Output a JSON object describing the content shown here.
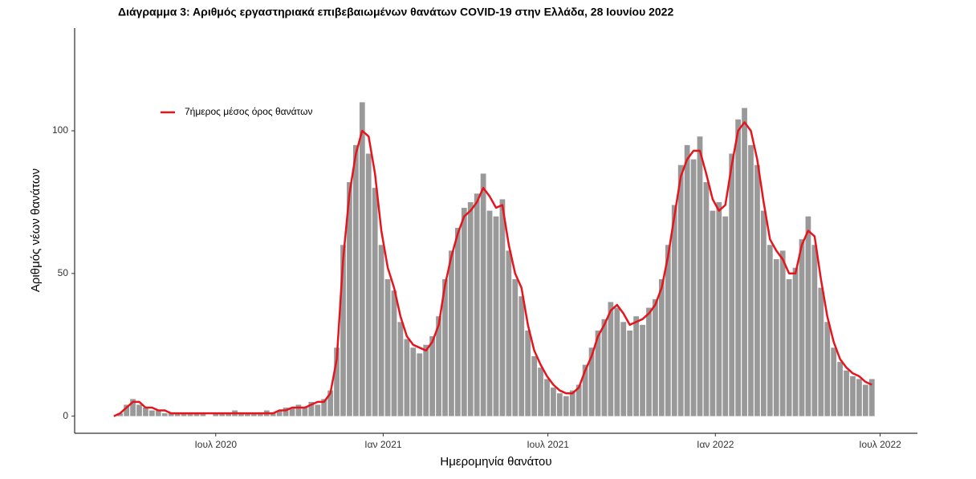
{
  "chart_data": {
    "type": "bar",
    "title": "Διάγραμμα 3: Αριθμός εργαστηριακά επιβεβαιωμένων θανάτων COVID-19 στην Ελλάδα, 28 Ιουνίου 2022",
    "x_label": "Ημερομηνία θανάτου",
    "y_label": "Αριθμός νέων θανάτων",
    "x": [
      "2020-03-11",
      "2020-03-18",
      "2020-03-25",
      "2020-04-01",
      "2020-04-08",
      "2020-04-15",
      "2020-04-22",
      "2020-04-29",
      "2020-05-06",
      "2020-05-13",
      "2020-05-20",
      "2020-05-27",
      "2020-06-03",
      "2020-06-10",
      "2020-06-17",
      "2020-06-24",
      "2020-07-01",
      "2020-07-08",
      "2020-07-15",
      "2020-07-22",
      "2020-07-29",
      "2020-08-05",
      "2020-08-12",
      "2020-08-19",
      "2020-08-26",
      "2020-09-02",
      "2020-09-09",
      "2020-09-16",
      "2020-09-23",
      "2020-09-30",
      "2020-10-07",
      "2020-10-14",
      "2020-10-21",
      "2020-10-28",
      "2020-11-04",
      "2020-11-11",
      "2020-11-18",
      "2020-11-25",
      "2020-12-02",
      "2020-12-09",
      "2020-12-16",
      "2020-12-23",
      "2020-12-30",
      "2021-01-06",
      "2021-01-13",
      "2021-01-20",
      "2021-01-27",
      "2021-02-03",
      "2021-02-10",
      "2021-02-17",
      "2021-02-24",
      "2021-03-03",
      "2021-03-10",
      "2021-03-17",
      "2021-03-24",
      "2021-03-31",
      "2021-04-07",
      "2021-04-14",
      "2021-04-21",
      "2021-04-28",
      "2021-05-05",
      "2021-05-12",
      "2021-05-19",
      "2021-05-26",
      "2021-06-02",
      "2021-06-09",
      "2021-06-16",
      "2021-06-23",
      "2021-06-30",
      "2021-07-07",
      "2021-07-14",
      "2021-07-21",
      "2021-07-28",
      "2021-08-04",
      "2021-08-11",
      "2021-08-18",
      "2021-08-25",
      "2021-09-01",
      "2021-09-08",
      "2021-09-15",
      "2021-09-22",
      "2021-09-29",
      "2021-10-06",
      "2021-10-13",
      "2021-10-20",
      "2021-10-27",
      "2021-11-03",
      "2021-11-10",
      "2021-11-17",
      "2021-11-24",
      "2021-12-01",
      "2021-12-08",
      "2021-12-15",
      "2021-12-22",
      "2021-12-29",
      "2022-01-05",
      "2022-01-12",
      "2022-01-19",
      "2022-01-26",
      "2022-02-02",
      "2022-02-09",
      "2022-02-16",
      "2022-02-23",
      "2022-03-02",
      "2022-03-09",
      "2022-03-16",
      "2022-03-23",
      "2022-03-30",
      "2022-04-06",
      "2022-04-13",
      "2022-04-20",
      "2022-04-27",
      "2022-05-04",
      "2022-05-11",
      "2022-05-18",
      "2022-05-25",
      "2022-06-01",
      "2022-06-08",
      "2022-06-15",
      "2022-06-22"
    ],
    "series": [
      {
        "color": "#999999",
        "values": [
          0,
          1,
          4,
          6,
          4,
          3,
          2,
          2,
          1,
          1,
          1,
          1,
          1,
          1,
          1,
          0,
          1,
          1,
          1,
          2,
          1,
          1,
          1,
          1,
          2,
          1,
          2,
          3,
          3,
          4,
          3,
          5,
          4,
          6,
          9,
          24,
          60,
          82,
          95,
          110,
          92,
          80,
          60,
          48,
          44,
          33,
          27,
          24,
          22,
          25,
          28,
          35,
          48,
          58,
          66,
          73,
          75,
          78,
          85,
          72,
          70,
          76,
          58,
          48,
          42,
          30,
          21,
          17,
          13,
          10,
          8,
          7,
          9,
          11,
          18,
          24,
          30,
          34,
          40,
          38,
          33,
          30,
          35,
          32,
          38,
          41,
          48,
          60,
          74,
          88,
          95,
          90,
          98,
          82,
          72,
          75,
          70,
          92,
          104,
          108,
          95,
          88,
          72,
          60,
          55,
          58,
          48,
          52,
          62,
          70,
          60,
          45,
          33,
          24,
          19,
          16,
          14,
          13,
          11,
          13
        ]
      },
      {
        "name": "7ήμερος μέσος όρος θανάτων",
        "type": "line",
        "color": "#e8141c",
        "values": [
          0,
          1,
          3,
          5,
          5,
          3,
          3,
          2,
          2,
          1,
          1,
          1,
          1,
          1,
          1,
          1,
          1,
          1,
          1,
          1,
          1,
          1,
          1,
          1,
          1,
          1,
          2,
          2,
          3,
          3,
          3,
          4,
          5,
          5,
          8,
          20,
          55,
          78,
          92,
          100,
          98,
          85,
          65,
          52,
          45,
          35,
          28,
          25,
          24,
          23,
          26,
          32,
          46,
          56,
          64,
          70,
          72,
          75,
          80,
          77,
          73,
          74,
          60,
          50,
          45,
          32,
          23,
          18,
          14,
          11,
          9,
          8,
          8,
          10,
          16,
          21,
          28,
          32,
          37,
          39,
          36,
          32,
          33,
          34,
          36,
          39,
          45,
          56,
          70,
          84,
          90,
          93,
          93,
          85,
          76,
          72,
          74,
          88,
          100,
          103,
          100,
          90,
          75,
          62,
          58,
          55,
          50,
          50,
          60,
          65,
          63,
          48,
          35,
          26,
          20,
          17,
          15,
          14,
          12,
          11
        ]
      }
    ],
    "xlim": [
      "2020-01-28",
      "2022-08-11"
    ],
    "xticks": [
      {
        "value": "2020-07-01",
        "label": "Ιουλ 2020"
      },
      {
        "value": "2021-01-01",
        "label": "Ιαν 2021"
      },
      {
        "value": "2021-07-01",
        "label": "Ιουλ 2021"
      },
      {
        "value": "2022-01-01",
        "label": "Ιαν 2022"
      },
      {
        "value": "2022-07-01",
        "label": "Ιουλ 2022"
      }
    ],
    "ylim": [
      -6,
      136
    ],
    "yticks": [
      0,
      50,
      100
    ],
    "grid": false,
    "legend": "top-left"
  }
}
